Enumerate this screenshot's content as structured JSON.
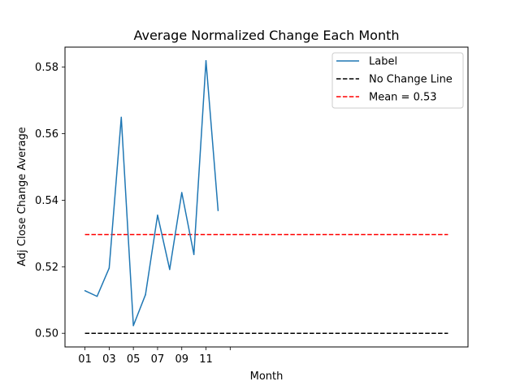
{
  "chart_data": {
    "type": "line",
    "title": "Average Normalized Change Each Month",
    "xlabel": "Month",
    "ylabel": "Adj Close Change Average",
    "x": [
      1,
      2,
      3,
      4,
      5,
      6,
      7,
      8,
      9,
      10,
      11,
      12
    ],
    "xlim": [
      -0.65,
      32.65
    ],
    "xticks": [
      {
        "value": 1,
        "label": "01"
      },
      {
        "value": 3,
        "label": "03"
      },
      {
        "value": 5,
        "label": "05"
      },
      {
        "value": 7,
        "label": "07"
      },
      {
        "value": 9,
        "label": "09"
      },
      {
        "value": 11,
        "label": "11"
      },
      {
        "value": 13,
        "label": ""
      }
    ],
    "ylim": [
      0.4959,
      0.586
    ],
    "yticks": [
      {
        "value": 0.5,
        "label": "0.50"
      },
      {
        "value": 0.52,
        "label": "0.52"
      },
      {
        "value": 0.54,
        "label": "0.54"
      },
      {
        "value": 0.56,
        "label": "0.56"
      },
      {
        "value": 0.58,
        "label": "0.58"
      }
    ],
    "series": [
      {
        "name": "Label",
        "color": "#1f77b4",
        "style": "solid",
        "values": [
          0.5128,
          0.5111,
          0.5196,
          0.5649,
          0.5023,
          0.5116,
          0.5355,
          0.5192,
          0.5423,
          0.5237,
          0.5819,
          0.5369
        ]
      }
    ],
    "reference_lines": [
      {
        "name": "No Change Line",
        "y": 0.5,
        "x_range": [
          1,
          31
        ],
        "color": "#000000",
        "style": "dashed"
      },
      {
        "name": "Mean = 0.53",
        "y": 0.5297,
        "x_range": [
          1,
          31
        ],
        "color": "#ff0000",
        "style": "dashed"
      }
    ],
    "legend": {
      "position": "top-right",
      "entries": [
        "Label",
        "No Change Line",
        "Mean = 0.53"
      ]
    },
    "grid": false
  }
}
